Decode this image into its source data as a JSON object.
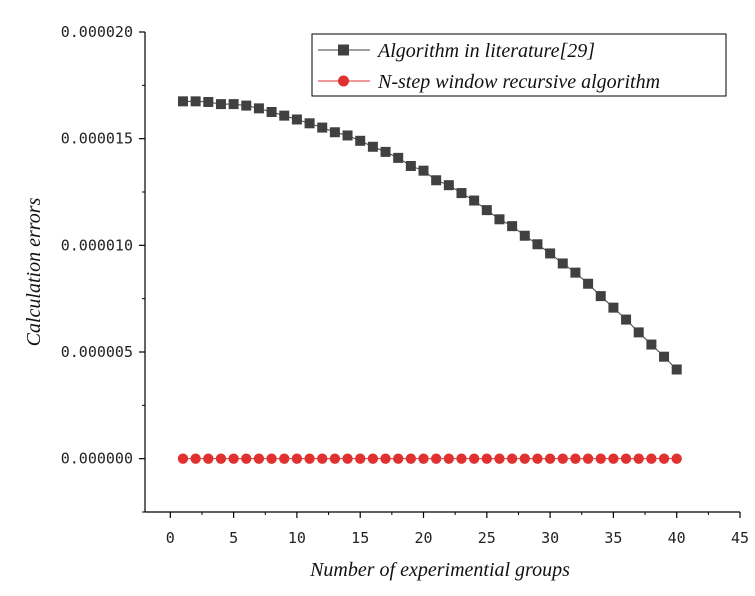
{
  "chart_data": {
    "type": "line",
    "title": "",
    "xlabel": "Number of experimential groups",
    "ylabel": "Calculation errors",
    "xlim": [
      -2,
      45
    ],
    "ylim": [
      -2.5e-06,
      2e-05
    ],
    "x_ticks": [
      0,
      5,
      10,
      15,
      20,
      25,
      30,
      35,
      40,
      45
    ],
    "x_tick_labels": [
      "0",
      "5",
      "10",
      "15",
      "20",
      "25",
      "30",
      "35",
      "40",
      "45"
    ],
    "y_ticks": [
      0,
      5e-06,
      1e-05,
      1.5e-05,
      2e-05
    ],
    "y_tick_labels": [
      "0.000000",
      "0.000005",
      "0.000010",
      "0.000015",
      "0.000020"
    ],
    "legend_position": "top-right",
    "x": [
      1,
      2,
      3,
      4,
      5,
      6,
      7,
      8,
      9,
      10,
      11,
      12,
      13,
      14,
      15,
      16,
      17,
      18,
      19,
      20,
      21,
      22,
      23,
      24,
      25,
      26,
      27,
      28,
      29,
      30,
      31,
      32,
      33,
      34,
      35,
      36,
      37,
      38,
      39,
      40
    ],
    "series": [
      {
        "name": "Algorithm in literature[29]",
        "color": "#404040",
        "marker": "square",
        "values": [
          1.675e-05,
          1.675e-05,
          1.672e-05,
          1.662e-05,
          1.662e-05,
          1.655e-05,
          1.642e-05,
          1.625e-05,
          1.608e-05,
          1.59e-05,
          1.572e-05,
          1.552e-05,
          1.53e-05,
          1.515e-05,
          1.49e-05,
          1.462e-05,
          1.438e-05,
          1.41e-05,
          1.372e-05,
          1.35e-05,
          1.305e-05,
          1.282e-05,
          1.245e-05,
          1.21e-05,
          1.165e-05,
          1.122e-05,
          1.09e-05,
          1.045e-05,
          1.005e-05,
          9.62e-06,
          9.15e-06,
          8.72e-06,
          8.2e-06,
          7.62e-06,
          7.08e-06,
          6.52e-06,
          5.92e-06,
          5.35e-06,
          4.78e-06,
          4.18e-06
        ]
      },
      {
        "name": "N-step window recursive algorithm",
        "color": "#e03030",
        "marker": "circle",
        "values": [
          0,
          0,
          0,
          0,
          0,
          0,
          0,
          0,
          0,
          0,
          0,
          0,
          0,
          0,
          0,
          0,
          0,
          0,
          0,
          0,
          0,
          0,
          0,
          0,
          0,
          0,
          0,
          0,
          0,
          0,
          0,
          0,
          0,
          0,
          0,
          0,
          0,
          0,
          0,
          0
        ]
      }
    ]
  }
}
